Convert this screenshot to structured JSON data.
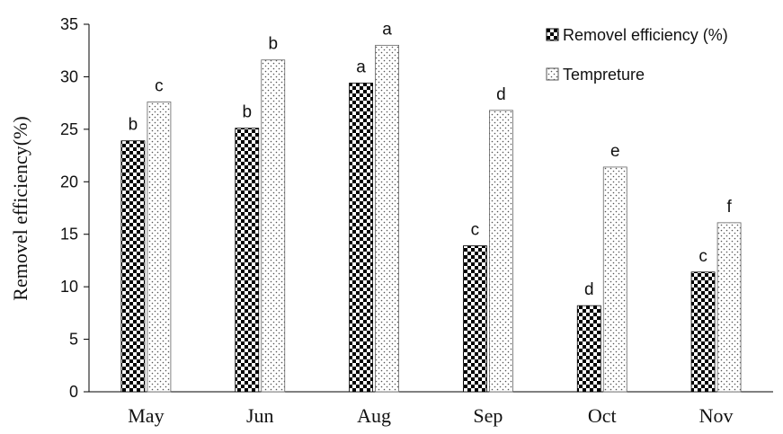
{
  "chart_data": {
    "type": "bar",
    "ylabel": "Removel efficiency(%)",
    "xlabel": "",
    "ylim": [
      0,
      35
    ],
    "yticks": [
      0,
      5,
      10,
      15,
      20,
      25,
      30,
      35
    ],
    "categories": [
      "May",
      "Jun",
      "Aug",
      "Sep",
      "Oct",
      "Nov"
    ],
    "series": [
      {
        "name": "Removel efficiency (%)",
        "pattern": "checkerboard",
        "values": [
          23.9,
          25.1,
          29.4,
          13.9,
          8.2,
          11.4
        ],
        "letters": [
          "b",
          "b",
          "a",
          "c",
          "d",
          "c"
        ]
      },
      {
        "name": "Tempreture",
        "pattern": "dotted",
        "values": [
          27.6,
          31.6,
          33.0,
          26.8,
          21.4,
          16.1
        ],
        "letters": [
          "c",
          "b",
          "a",
          "d",
          "e",
          "f"
        ]
      }
    ],
    "legend_position": "top-right",
    "grid": false,
    "colors": {
      "checker_dark": "#000000",
      "checker_light": "#ffffff",
      "dot": "#555555",
      "axis": "#000000"
    }
  }
}
